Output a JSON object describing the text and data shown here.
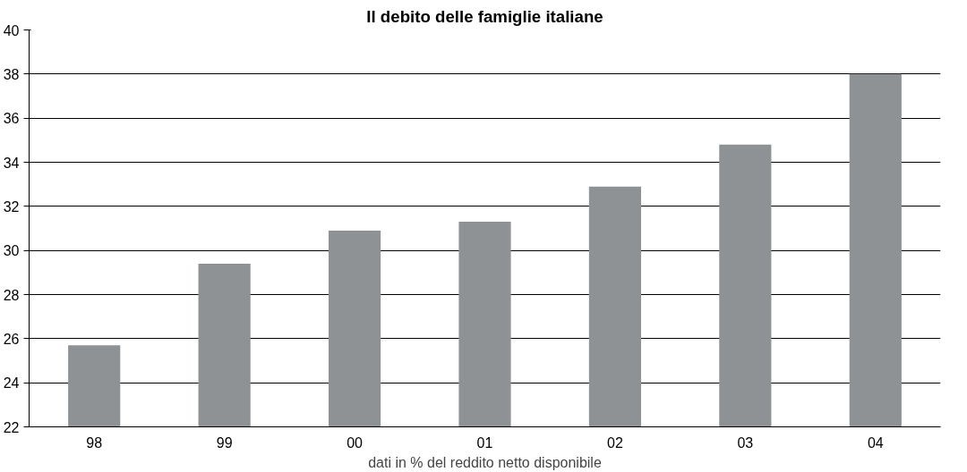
{
  "chart_data": {
    "type": "bar",
    "title": "Il debito delle famiglie italiane",
    "xlabel": "dati in % del reddito netto disponibile",
    "categories": [
      "98",
      "99",
      "00",
      "01",
      "02",
      "03",
      "04"
    ],
    "values": [
      25.7,
      29.4,
      30.9,
      31.3,
      32.9,
      34.8,
      38.0
    ],
    "color": "#8e9295",
    "ylim": [
      22,
      40
    ],
    "yticks": [
      22,
      24,
      26,
      28,
      30,
      32,
      34,
      36,
      38,
      40
    ],
    "grid": "y"
  }
}
